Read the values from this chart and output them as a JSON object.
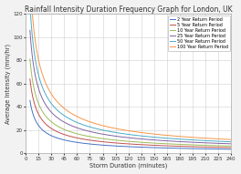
{
  "title": "Rainfall Intensity Duration Frequency Graph for London, UK",
  "xlabel": "Storm Duration (minutes)",
  "ylabel": "Average Intensity (mm/hr)",
  "xlim": [
    0,
    240
  ],
  "ylim": [
    0,
    120
  ],
  "xticks": [
    0,
    15,
    30,
    45,
    60,
    75,
    90,
    105,
    120,
    135,
    150,
    165,
    180,
    195,
    210,
    225,
    240
  ],
  "yticks": [
    0,
    20,
    40,
    60,
    80,
    100,
    120
  ],
  "series": [
    {
      "label": "2 Year Return Period",
      "color": "#4472c4",
      "T": 2
    },
    {
      "label": "5 Year Return Period",
      "color": "#c0504d",
      "T": 5
    },
    {
      "label": "10 Year Return Period",
      "color": "#9bbb59",
      "T": 10
    },
    {
      "label": "25 Year Return Period",
      "color": "#8064a2",
      "T": 25
    },
    {
      "label": "50 Year Return Period",
      "color": "#4bacc6",
      "T": 50
    },
    {
      "label": "100 Year Return Period",
      "color": "#f79646",
      "T": 100
    }
  ],
  "idf_params": {
    "2": {
      "a": 185,
      "b": 2.0,
      "c": 0.72
    },
    "5": {
      "a": 260,
      "b": 2.0,
      "c": 0.72
    },
    "10": {
      "a": 330,
      "b": 2.0,
      "c": 0.72
    },
    "25": {
      "a": 430,
      "b": 2.0,
      "c": 0.72
    },
    "50": {
      "a": 520,
      "b": 2.0,
      "c": 0.72
    },
    "100": {
      "a": 620,
      "b": 2.0,
      "c": 0.72
    }
  },
  "background_color": "#f2f2f2",
  "plot_bg_color": "#ffffff",
  "grid_color": "#d0d0d0",
  "title_fontsize": 5.5,
  "label_fontsize": 4.8,
  "tick_fontsize": 4.0,
  "legend_fontsize": 3.5,
  "linewidth": 0.7
}
